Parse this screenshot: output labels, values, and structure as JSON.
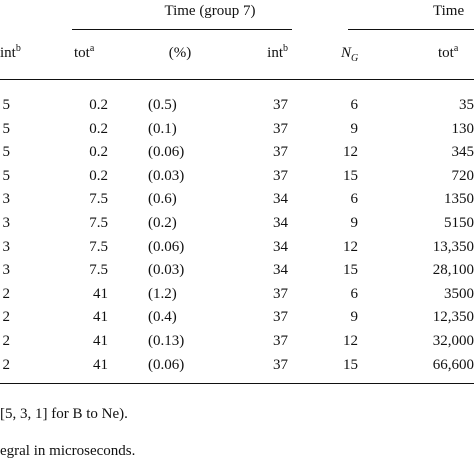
{
  "header": {
    "group7_title": "Time (group 7)",
    "right_title": "Time",
    "int_left_main": "int",
    "int_left_sup": "b",
    "tot_main": "tot",
    "tot_sup": "a",
    "pct": "(%)",
    "int_main": "int",
    "int_sup": "b",
    "ng_main": "N",
    "ng_sub": "G",
    "tot2_main": "tot",
    "tot2_sup": "a"
  },
  "rows": [
    {
      "c0": "5",
      "tot": "0.2",
      "pct": "(0.5)",
      "int": "37",
      "ng": "6",
      "tot2": "35"
    },
    {
      "c0": "5",
      "tot": "0.2",
      "pct": "(0.1)",
      "int": "37",
      "ng": "9",
      "tot2": "130"
    },
    {
      "c0": "5",
      "tot": "0.2",
      "pct": "(0.06)",
      "int": "37",
      "ng": "12",
      "tot2": "345"
    },
    {
      "c0": "5",
      "tot": "0.2",
      "pct": "(0.03)",
      "int": "37",
      "ng": "15",
      "tot2": "720"
    },
    {
      "c0": "3",
      "tot": "7.5",
      "pct": "(0.6)",
      "int": "34",
      "ng": "6",
      "tot2": "1350"
    },
    {
      "c0": "3",
      "tot": "7.5",
      "pct": "(0.2)",
      "int": "34",
      "ng": "9",
      "tot2": "5150"
    },
    {
      "c0": "3",
      "tot": "7.5",
      "pct": "(0.06)",
      "int": "34",
      "ng": "12",
      "tot2": "13,350"
    },
    {
      "c0": "3",
      "tot": "7.5",
      "pct": "(0.03)",
      "int": "34",
      "ng": "15",
      "tot2": "28,100"
    },
    {
      "c0": "2",
      "tot": "41",
      "pct": "(1.2)",
      "int": "37",
      "ng": "6",
      "tot2": "3500"
    },
    {
      "c0": "2",
      "tot": "41",
      "pct": "(0.4)",
      "int": "37",
      "ng": "9",
      "tot2": "12,350"
    },
    {
      "c0": "2",
      "tot": "41",
      "pct": "(0.13)",
      "int": "37",
      "ng": "12",
      "tot2": "32,000"
    },
    {
      "c0": "2",
      "tot": "41",
      "pct": "(0.06)",
      "int": "37",
      "ng": "15",
      "tot2": "66,600"
    }
  ],
  "footnotes": {
    "line1": "[5, 3, 1] for B to Ne).",
    "line2": "egral in microseconds."
  }
}
